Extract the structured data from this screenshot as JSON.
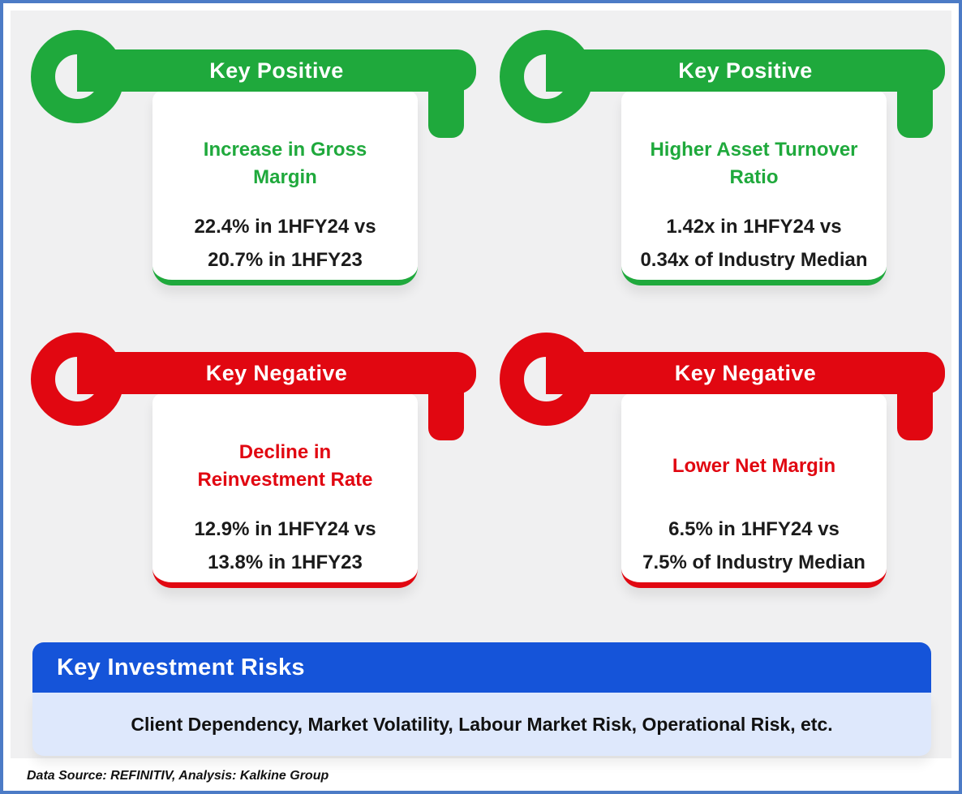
{
  "colors": {
    "positive": "#1fa93c",
    "negative": "#e10711",
    "banner_blue": "#1554d9",
    "risk_box": "#dee8fc",
    "panel_gray": "#f0f0f1",
    "frame_border": "#4c7bc6"
  },
  "cards": [
    {
      "badge": "Key Positive",
      "title_line1": "Increase in Gross",
      "title_line2": "Margin",
      "metric_line1": "22.4% in 1HFY24 vs",
      "metric_line2": "20.7% in 1HFY23"
    },
    {
      "badge": "Key Positive",
      "title_line1": "Higher Asset Turnover",
      "title_line2": "Ratio",
      "metric_line1": "1.42x in 1HFY24 vs",
      "metric_line2": "0.34x of Industry Median"
    },
    {
      "badge": "Key Negative",
      "title_line1": "Decline in",
      "title_line2": "Reinvestment Rate",
      "metric_line1": "12.9% in 1HFY24 vs",
      "metric_line2": "13.8% in 1HFY23"
    },
    {
      "badge": "Key Negative",
      "title_line1": "Lower Net Margin",
      "title_line2": "",
      "metric_line1": "6.5% in 1HFY24 vs",
      "metric_line2": "7.5% of Industry Median"
    }
  ],
  "risks": {
    "heading": "Key Investment Risks",
    "items": "Client Dependency, Market Volatility, Labour Market Risk, Operational Risk, etc."
  },
  "footer": "Data Source: REFINITIV, Analysis: Kalkine Group"
}
